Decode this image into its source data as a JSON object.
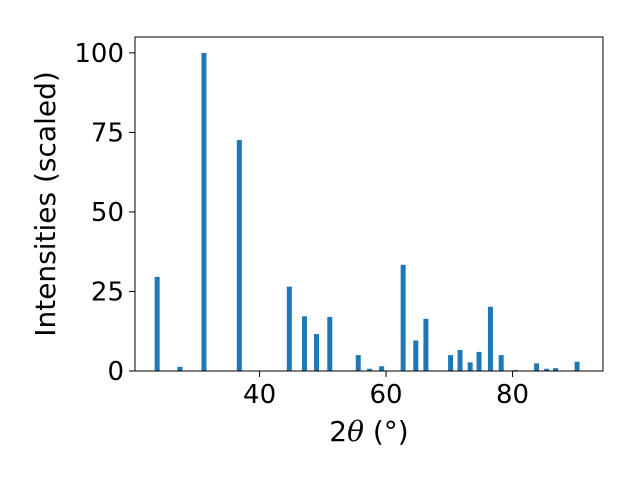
{
  "chart_data": {
    "type": "bar",
    "xlabel_prefix": "2",
    "xlabel_symbol": "θ",
    "xlabel_suffix": " (°)",
    "ylabel": "Intensities (scaled)",
    "xlim": [
      20.3,
      94.3
    ],
    "ylim": [
      0,
      105
    ],
    "xticks": [
      40,
      60,
      80
    ],
    "yticks": [
      0,
      25,
      50,
      75,
      100
    ],
    "bar_color": "#1f77b4",
    "grid": false,
    "x": [
      23.8,
      27.4,
      31.2,
      36.8,
      44.7,
      47.1,
      49.0,
      51.1,
      55.6,
      57.4,
      59.3,
      62.7,
      64.7,
      66.3,
      70.2,
      71.7,
      73.3,
      74.7,
      76.5,
      78.2,
      80.5,
      83.8,
      85.4,
      86.8,
      90.2
    ],
    "values": [
      29.6,
      1.3,
      100.0,
      72.6,
      26.5,
      17.2,
      11.6,
      17.0,
      5.0,
      0.7,
      1.5,
      33.4,
      9.6,
      16.4,
      5.0,
      6.6,
      2.7,
      6.0,
      20.2,
      5.0,
      0.3,
      2.4,
      0.7,
      0.9,
      2.9
    ]
  }
}
